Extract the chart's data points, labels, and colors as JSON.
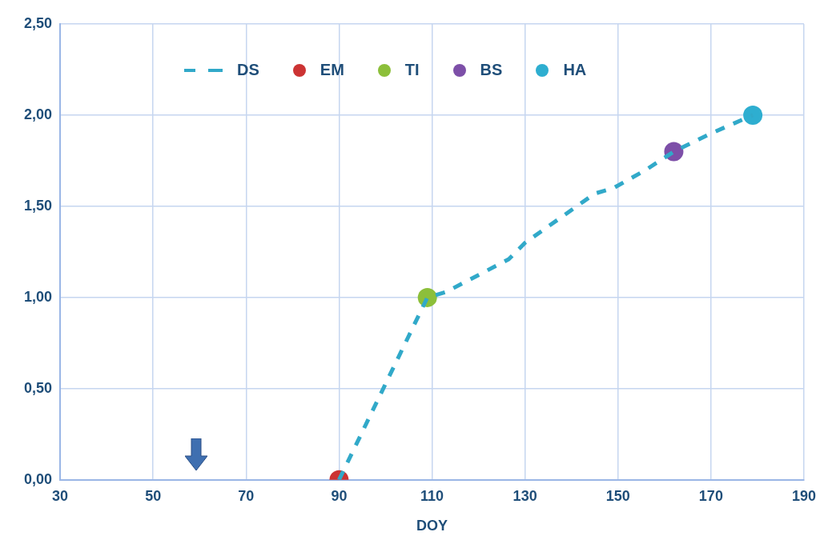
{
  "chart_data": {
    "type": "line",
    "xlabel": "DOY",
    "xlim": [
      30,
      190
    ],
    "xticks": [
      30,
      50,
      70,
      90,
      110,
      130,
      150,
      170,
      190
    ],
    "ylim": [
      0,
      2.5
    ],
    "yticks": [
      {
        "value": 0,
        "label": "0,00"
      },
      {
        "value": 0.5,
        "label": "0,50"
      },
      {
        "value": 1,
        "label": "1,00"
      },
      {
        "value": 1.5,
        "label": "1,50"
      },
      {
        "value": 2,
        "label": "2,00"
      },
      {
        "value": 2.5,
        "label": "2,50"
      }
    ],
    "grid": true,
    "legend": "top",
    "series": [
      {
        "name": "DS",
        "line_style": "dashed",
        "marker": "none",
        "color": "#31a9c9",
        "x": [
          90,
          109,
          113,
          126.5,
          130,
          145,
          149,
          156,
          162,
          170,
          179
        ],
        "values": [
          0,
          1.0,
          1.03,
          1.21,
          1.3,
          1.57,
          1.6,
          1.7,
          1.8,
          1.9,
          2.0
        ]
      },
      {
        "name": "EM",
        "type": "scatter",
        "marker": "circle",
        "color": "#cc3333",
        "x": [
          90
        ],
        "values": [
          0
        ]
      },
      {
        "name": "TI",
        "type": "scatter",
        "marker": "circle",
        "color": "#8cbf3a",
        "x": [
          109
        ],
        "values": [
          1.0
        ]
      },
      {
        "name": "BS",
        "type": "scatter",
        "marker": "circle",
        "color": "#7d4fa8",
        "x": [
          162
        ],
        "values": [
          1.8
        ]
      },
      {
        "name": "HA",
        "type": "scatter",
        "marker": "circle",
        "color": "#2eaed0",
        "x": [
          179
        ],
        "values": [
          2.0
        ]
      }
    ]
  }
}
